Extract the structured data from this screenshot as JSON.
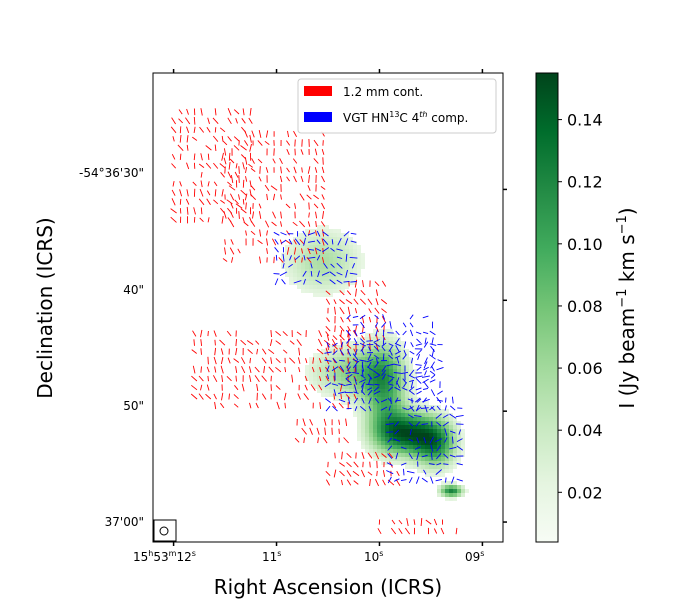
{
  "chart_data": {
    "type": "map",
    "xlabel": "Right Ascension (ICRS)",
    "ylabel": "Declination (ICRS)",
    "x_ticks": [
      {
        "label": "15h53m12s",
        "parts": [
          "15",
          "h",
          "53",
          "m",
          "12",
          "s"
        ],
        "ra_sec": 12
      },
      {
        "label": "11s",
        "parts": [
          "11",
          "s"
        ],
        "ra_sec": 11
      },
      {
        "label": "10s",
        "parts": [
          "10",
          "s"
        ],
        "ra_sec": 10
      },
      {
        "label": "09s",
        "parts": [
          "09",
          "s"
        ],
        "ra_sec": 9
      }
    ],
    "y_ticks": [
      {
        "label": "-54°36'30\"",
        "dec_arcsec": 30
      },
      {
        "label": "40\"",
        "dec_arcsec": 40
      },
      {
        "label": "50\"",
        "dec_arcsec": 50
      },
      {
        "label": "37'00\"",
        "dec_arcsec": 60
      }
    ],
    "legend": [
      {
        "label": "1.2 mm cont.",
        "color": "#ff0000"
      },
      {
        "label_main": "VGT HN",
        "label_sup1": "13",
        "label_mid": "C 4",
        "label_sup2": "th",
        "label_end": " comp.",
        "label": "VGT HN13C 4th comp.",
        "color": "#0000ff"
      }
    ],
    "legend_position": "top-right",
    "colorbar": {
      "label": "I (Jy beam⁻¹ km s⁻¹)",
      "label_parts": [
        "I (Jy beam",
        "−1",
        " km s",
        "−1",
        ")"
      ],
      "min": 0.004,
      "max": 0.155,
      "ticks": [
        0.02,
        0.04,
        0.06,
        0.08,
        0.1,
        0.12,
        0.14
      ],
      "tick_labels": [
        "0.02",
        "0.04",
        "0.06",
        "0.08",
        "0.10",
        "0.12",
        "0.14"
      ],
      "colormap": "Greens"
    },
    "xlim_ra_sec": [
      12.2,
      8.8
    ],
    "ylim_dec_arcsec": [
      19.5,
      61.8
    ],
    "emission_blobs": [
      {
        "ra": 10.55,
        "dec": 36.5,
        "sx": 0.28,
        "sy": 2.2,
        "peak": 0.055
      },
      {
        "ra": 10.25,
        "dec": 46.5,
        "sx": 0.3,
        "sy": 1.7,
        "peak": 0.07
      },
      {
        "ra": 9.95,
        "dec": 48.0,
        "sx": 0.15,
        "sy": 3.0,
        "peak": 0.085
      },
      {
        "ra": 9.75,
        "dec": 52.0,
        "sx": 0.22,
        "sy": 1.4,
        "peak": 0.13
      },
      {
        "ra": 9.45,
        "dec": 53.0,
        "sx": 0.15,
        "sy": 1.6,
        "peak": 0.1
      },
      {
        "ra": 9.3,
        "dec": 57.2,
        "sx": 0.08,
        "sy": 0.4,
        "peak": 0.12
      }
    ],
    "red_vector_regions": [
      {
        "ra": [
          11.2,
          12.0
        ],
        "dec": [
          23.0,
          33.0
        ]
      },
      {
        "ra": [
          10.5,
          11.5
        ],
        "dec": [
          25.0,
          37.0
        ]
      },
      {
        "ra": [
          10.2,
          11.8
        ],
        "dec": [
          43.0,
          50.0
        ]
      },
      {
        "ra": [
          9.9,
          10.5
        ],
        "dec": [
          38.5,
          44.5
        ]
      },
      {
        "ra": [
          9.8,
          10.5
        ],
        "dec": [
          54.0,
          56.5
        ]
      },
      {
        "ra": [
          9.2,
          10.0
        ],
        "dec": [
          60.0,
          61.0
        ]
      },
      {
        "ra": [
          10.3,
          10.8
        ],
        "dec": [
          51.0,
          53.0
        ]
      }
    ],
    "blue_vector_regions": [
      {
        "ra": [
          10.25,
          11.0
        ],
        "dec": [
          34.0,
          38.5
        ]
      },
      {
        "ra": [
          9.45,
          10.3
        ],
        "dec": [
          41.5,
          48.5
        ]
      },
      {
        "ra": [
          9.4,
          10.5
        ],
        "dec": [
          44.0,
          50.0
        ]
      },
      {
        "ra": [
          9.2,
          9.9
        ],
        "dec": [
          49.0,
          56.5
        ]
      }
    ]
  }
}
